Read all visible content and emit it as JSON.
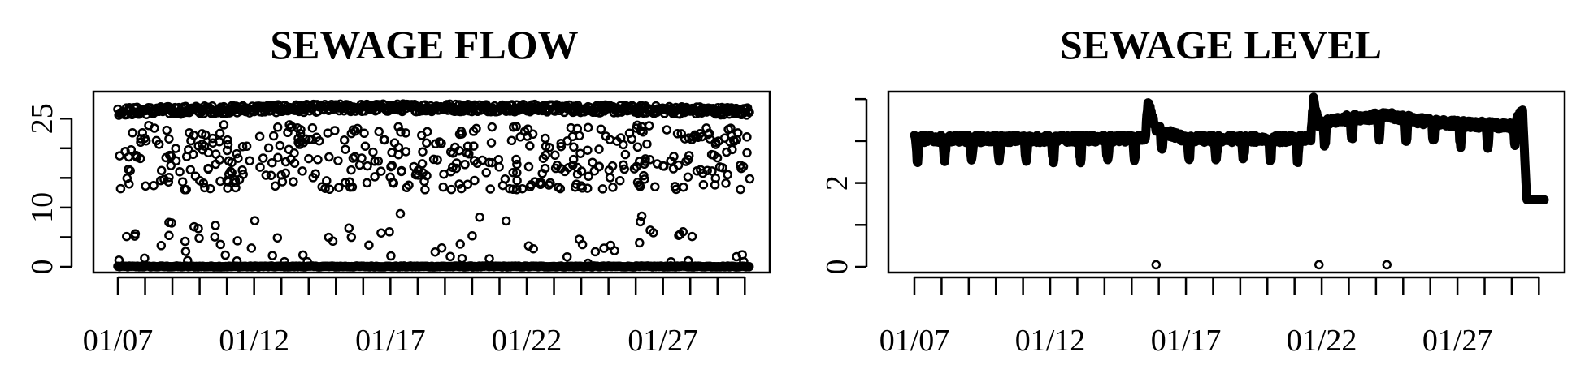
{
  "chart_data": [
    {
      "type": "scatter",
      "title": "SEWAGE FLOW",
      "xlabel": "",
      "ylabel": "",
      "x_tick_labels": [
        "01/07",
        "01/12",
        "01/17",
        "01/22",
        "01/27"
      ],
      "x_tick_days": [
        7,
        12,
        17,
        22,
        27
      ],
      "x_range_days": [
        7,
        30.2
      ],
      "y_ticks": [
        0,
        5,
        10,
        15,
        20,
        25
      ],
      "y_tick_labels": [
        "0",
        "",
        "10",
        "",
        "",
        "25"
      ],
      "ylim": [
        0,
        29
      ],
      "grid": false,
      "legend": false,
      "series": [
        {
          "description": "points",
          "upper_band_range": [
            24.5,
            27.5
          ],
          "zero_baseline": 0,
          "mid_scatter_range": [
            13,
            24
          ],
          "low_scatter_range": [
            0.5,
            9
          ]
        }
      ]
    },
    {
      "type": "line",
      "title": "SEWAGE LEVEL",
      "xlabel": "",
      "ylabel": "",
      "x_tick_labels": [
        "01/07",
        "01/12",
        "01/17",
        "01/22",
        "01/27"
      ],
      "x_tick_days": [
        7,
        12,
        17,
        22,
        27
      ],
      "x_range_days": [
        7,
        30.2
      ],
      "y_ticks": [
        0,
        1,
        2,
        3,
        4
      ],
      "y_tick_labels": [
        "0",
        "",
        "2",
        "",
        ""
      ],
      "ylim": [
        0,
        4.1
      ],
      "grid": false,
      "legend": false,
      "series": [
        {
          "description": "level",
          "profile": [
            [
              7.0,
              3.05
            ],
            [
              15.5,
              3.05
            ],
            [
              15.6,
              3.9
            ],
            [
              15.9,
              3.3
            ],
            [
              16.3,
              3.2
            ],
            [
              17.0,
              3.05
            ],
            [
              21.6,
              3.05
            ],
            [
              21.7,
              4.0
            ],
            [
              21.9,
              3.4
            ],
            [
              23.0,
              3.55
            ],
            [
              24.5,
              3.6
            ],
            [
              26.0,
              3.45
            ],
            [
              27.5,
              3.4
            ],
            [
              29.0,
              3.35
            ],
            [
              29.4,
              3.7
            ],
            [
              29.55,
              1.6
            ],
            [
              30.2,
              1.6
            ]
          ],
          "outlier_points": [
            [
              15.9,
              0.05
            ],
            [
              21.9,
              0.05
            ],
            [
              24.4,
              0.05
            ]
          ]
        }
      ]
    }
  ]
}
